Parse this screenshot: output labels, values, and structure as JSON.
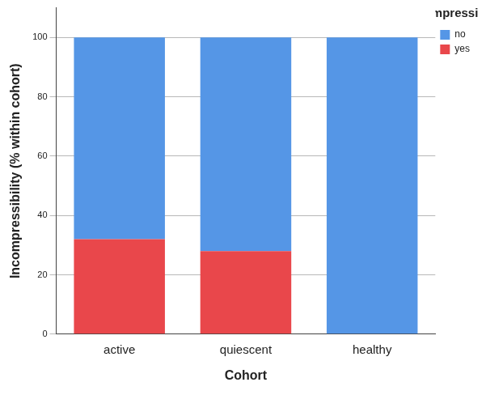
{
  "chart_data": {
    "type": "bar",
    "stacked": true,
    "categories": [
      "active",
      "quiescent",
      "healthy"
    ],
    "series": [
      {
        "name": "no",
        "color": "#5596e6",
        "values": [
          68,
          72,
          100
        ]
      },
      {
        "name": "yes",
        "color": "#e9474b",
        "values": [
          32,
          28,
          0
        ]
      }
    ],
    "x_label": "Cohort",
    "y_label": "Incompressibility (% within cohort)",
    "legend_title": "Incompressibility",
    "legend": "top right",
    "ylim": [
      0,
      110
    ],
    "yticks": [
      0,
      20,
      40,
      60,
      80,
      100
    ],
    "grid": true
  }
}
